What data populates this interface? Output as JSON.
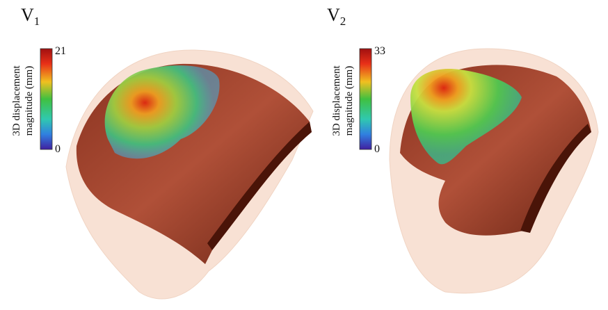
{
  "panels": [
    {
      "title": "V",
      "title_subscript": "1",
      "colorbar": {
        "label_lines": [
          "3D displacement",
          "magnitude (mm)"
        ],
        "max": 21,
        "min": 0
      }
    },
    {
      "title": "V",
      "title_subscript": "2",
      "colorbar": {
        "label_lines": [
          "3D displacement",
          "magnitude (mm)"
        ],
        "max": 33,
        "min": 0
      }
    }
  ]
}
